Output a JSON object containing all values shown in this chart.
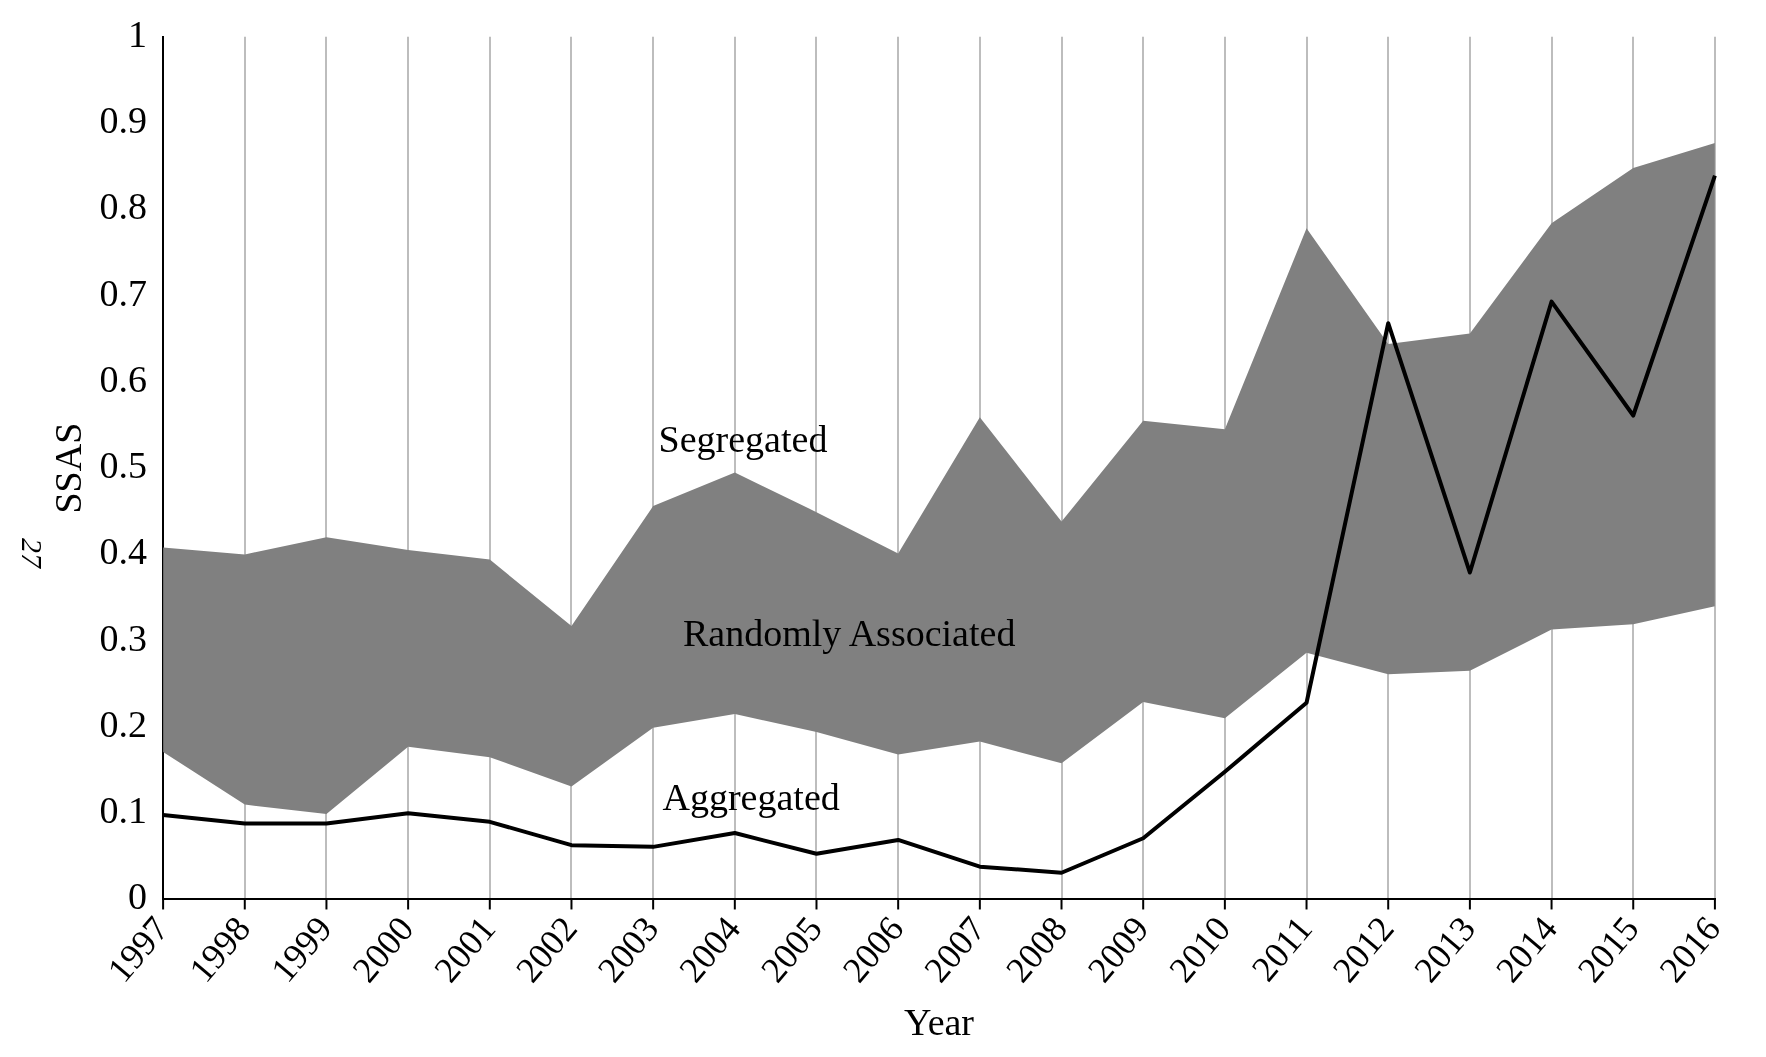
{
  "chart_data": {
    "type": "line",
    "xlabel": "Year",
    "ylabel": "SSAS",
    "categories": [
      "1997",
      "1998",
      "1999",
      "2000",
      "2001",
      "2002",
      "2003",
      "2004",
      "2005",
      "2006",
      "2007",
      "2008",
      "2009",
      "2010",
      "2011",
      "2012",
      "2013",
      "2014",
      "2015",
      "2016"
    ],
    "series": [
      {
        "type": "line",
        "color": "#000000",
        "values": [
          0.098,
          0.088,
          0.088,
          0.1,
          0.09,
          0.063,
          0.061,
          0.077,
          0.053,
          0.069,
          0.038,
          0.031,
          0.071,
          0.148,
          0.228,
          0.668,
          0.379,
          0.693,
          0.561,
          0.839
        ],
        "lower": [
          0.171,
          0.11,
          0.099,
          0.177,
          0.165,
          0.131,
          0.199,
          0.215,
          0.194,
          0.168,
          0.183,
          0.158,
          0.229,
          0.21,
          0.286,
          0.261,
          0.265,
          0.313,
          0.319,
          0.34
        ],
        "upper": [
          0.408,
          0.4,
          0.42,
          0.405,
          0.394,
          0.317,
          0.456,
          0.495,
          0.449,
          0.401,
          0.559,
          0.438,
          0.555,
          0.545,
          0.778,
          0.644,
          0.656,
          0.784,
          0.848,
          0.877
        ]
      }
    ],
    "ylim": [
      0,
      1
    ],
    "yticks": [
      0,
      0.1,
      0.2,
      0.3,
      0.4,
      0.5,
      0.6,
      0.7,
      0.8,
      0.9,
      1
    ],
    "grid": "x",
    "legend": false,
    "marker": "none",
    "line_style": "solid",
    "annotations": [
      "Segregated",
      "Randomly Associated",
      "Aggregated",
      "27"
    ]
  }
}
